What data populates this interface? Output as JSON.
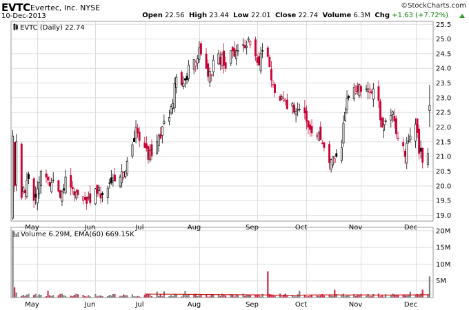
{
  "header": {
    "symbol": "EVTC",
    "company": "Evertec, Inc.",
    "exchange": "NYSE",
    "date": "10-Dec-2013",
    "credit": "©StockCharts.com",
    "open_label": "Open",
    "open": "22.56",
    "high_label": "High",
    "high": "23.44",
    "low_label": "Low",
    "low": "22.01",
    "close_label": "Close",
    "close": "22.74",
    "volume_label": "Volume",
    "volume": "6.3M",
    "chg_label": "Chg",
    "chg": "+1.63 (+7.72%)",
    "chg_direction": "up-triangle-icon"
  },
  "chart_data": [
    {
      "type": "candlestick",
      "legend": "EVTC (Daily) 22.74",
      "x_labels": [
        "May",
        "Jun",
        "Jul",
        "Aug",
        "Sep",
        "Oct",
        "Nov",
        "Dec"
      ],
      "y_ticks": [
        "19.0",
        "19.5",
        "20.0",
        "20.5",
        "21.0",
        "21.5",
        "22.0",
        "22.5",
        "23.0",
        "23.5",
        "24.0",
        "24.5",
        "25.0",
        "25.5"
      ],
      "ylim": [
        18.8,
        25.6
      ],
      "grid": true,
      "up_color": "#000000",
      "down_color": "#cc0033",
      "close_anchors": [
        [
          "2013-04-18",
          20.0
        ],
        [
          "2013-04-19",
          21.5
        ],
        [
          "2013-04-22",
          19.6
        ],
        [
          "2013-04-25",
          20.2
        ],
        [
          "2013-04-29",
          19.5
        ],
        [
          "2013-05-01",
          19.9
        ],
        [
          "2013-05-03",
          20.5
        ],
        [
          "2013-05-06",
          20.3
        ],
        [
          "2013-05-08",
          20.0
        ],
        [
          "2013-05-10",
          20.2
        ],
        [
          "2013-05-14",
          19.6
        ],
        [
          "2013-05-17",
          20.3
        ],
        [
          "2013-05-21",
          19.9
        ],
        [
          "2013-05-24",
          19.7
        ],
        [
          "2013-05-29",
          19.4
        ],
        [
          "2013-06-03",
          19.9
        ],
        [
          "2013-06-07",
          19.7
        ],
        [
          "2013-06-12",
          20.1
        ],
        [
          "2013-06-17",
          20.3
        ],
        [
          "2013-06-20",
          20.5
        ],
        [
          "2013-06-24",
          21.4
        ],
        [
          "2013-06-26",
          22.0
        ],
        [
          "2013-06-27",
          21.8
        ],
        [
          "2013-07-01",
          21.3
        ],
        [
          "2013-07-03",
          20.9
        ],
        [
          "2013-07-08",
          21.5
        ],
        [
          "2013-07-12",
          22.2
        ],
        [
          "2013-07-16",
          22.7
        ],
        [
          "2013-07-19",
          23.7
        ],
        [
          "2013-07-24",
          23.6
        ],
        [
          "2013-07-29",
          24.3
        ],
        [
          "2013-08-01",
          24.7
        ],
        [
          "2013-08-05",
          24.0
        ],
        [
          "2013-08-07",
          23.9
        ],
        [
          "2013-08-12",
          24.5
        ],
        [
          "2013-08-15",
          24.1
        ],
        [
          "2013-08-19",
          24.6
        ],
        [
          "2013-08-22",
          24.6
        ],
        [
          "2013-08-26",
          24.8
        ],
        [
          "2013-08-29",
          25.0
        ],
        [
          "2013-09-03",
          24.2
        ],
        [
          "2013-09-06",
          24.6
        ],
        [
          "2013-09-09",
          24.4
        ],
        [
          "2013-09-11",
          23.6
        ],
        [
          "2013-09-16",
          22.9
        ],
        [
          "2013-09-19",
          22.9
        ],
        [
          "2013-09-23",
          22.8
        ],
        [
          "2013-09-26",
          22.6
        ],
        [
          "2013-10-01",
          22.2
        ],
        [
          "2013-10-04",
          21.8
        ],
        [
          "2013-10-08",
          21.8
        ],
        [
          "2013-10-11",
          21.3
        ],
        [
          "2013-10-15",
          20.9
        ],
        [
          "2013-10-18",
          21.0
        ],
        [
          "2013-10-21",
          21.3
        ],
        [
          "2013-10-23",
          22.5
        ],
        [
          "2013-10-25",
          23.0
        ],
        [
          "2013-10-30",
          23.2
        ],
        [
          "2013-11-04",
          23.3
        ],
        [
          "2013-11-06",
          23.3
        ],
        [
          "2013-11-08",
          23.3
        ],
        [
          "2013-11-11",
          22.9
        ],
        [
          "2013-11-13",
          22.0
        ],
        [
          "2013-11-18",
          22.4
        ],
        [
          "2013-11-20",
          22.2
        ],
        [
          "2013-11-22",
          21.6
        ],
        [
          "2013-11-26",
          21.0
        ],
        [
          "2013-11-29",
          21.7
        ],
        [
          "2013-12-02",
          22.1
        ],
        [
          "2013-12-04",
          21.1
        ],
        [
          "2013-12-06",
          20.8
        ],
        [
          "2013-12-09",
          21.1
        ],
        [
          "2013-12-10",
          22.74
        ]
      ]
    },
    {
      "type": "bar",
      "legend": "Volume 6.29M, EMA(60) 669.15K",
      "x_labels": [
        "May",
        "Jun",
        "Jul",
        "Aug",
        "Sep",
        "Oct",
        "Nov",
        "Dec"
      ],
      "y_ticks": [
        "5M",
        "10M",
        "15M",
        "20M"
      ],
      "ylim": [
        0,
        21000000
      ],
      "ema_color": "#cc0000",
      "ema_level": 669150,
      "spikes": [
        [
          "2013-04-17",
          20000000
        ],
        [
          "2013-04-18",
          3000000
        ],
        [
          "2013-04-19",
          1500000
        ],
        [
          "2013-09-09",
          7800000
        ],
        [
          "2013-12-10",
          6290000
        ]
      ]
    }
  ]
}
